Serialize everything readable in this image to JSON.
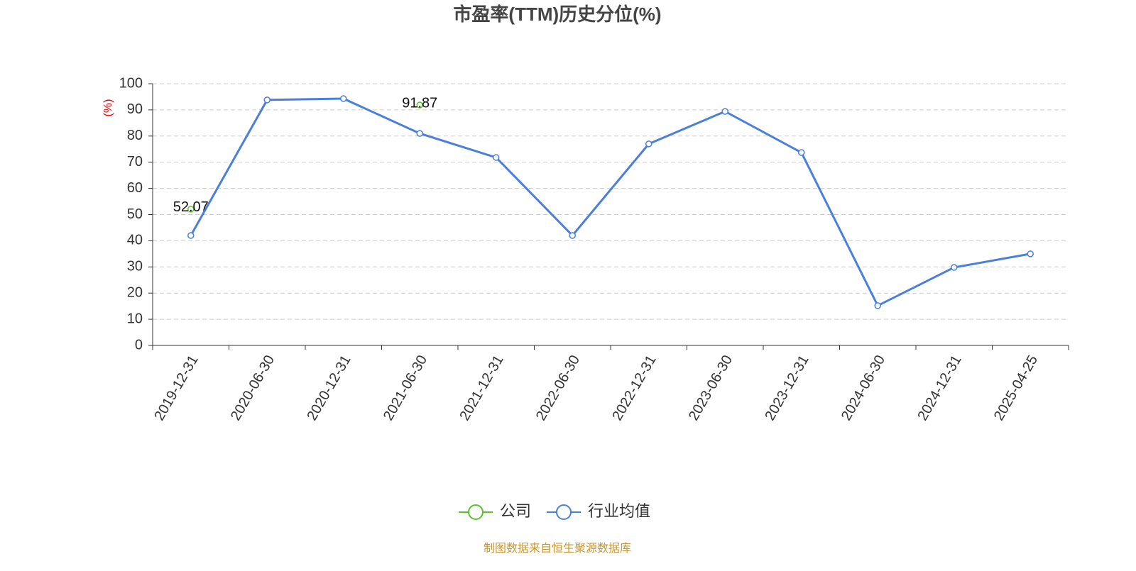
{
  "chart_data": {
    "type": "line",
    "title": "市盈率(TTM)历史分位(%)",
    "y_axis_label": "(%)",
    "categories": [
      "2019-12-31",
      "2020-06-30",
      "2020-12-31",
      "2021-06-30",
      "2021-12-31",
      "2022-06-30",
      "2022-12-31",
      "2023-06-30",
      "2023-12-31",
      "2024-06-30",
      "2024-12-31",
      "2025-04-25"
    ],
    "series": [
      {
        "name": "公司",
        "color": "#5cc12f",
        "values": [
          52.07,
          null,
          null,
          91.87,
          null,
          null,
          null,
          null,
          null,
          null,
          null,
          null
        ],
        "show_labels": true
      },
      {
        "name": "行业均值",
        "color": "#4a7fdb",
        "values": [
          42.0,
          93.8,
          94.3,
          81.0,
          71.8,
          42.0,
          77.0,
          89.4,
          73.7,
          15.2,
          29.8,
          35.0
        ]
      }
    ],
    "ylim": [
      0,
      100
    ],
    "yticks": [
      0,
      10,
      20,
      30,
      40,
      50,
      60,
      70,
      80,
      90,
      100
    ],
    "grid": true,
    "legend": "bottom",
    "source": "制图数据来自恒生聚源数据库"
  }
}
